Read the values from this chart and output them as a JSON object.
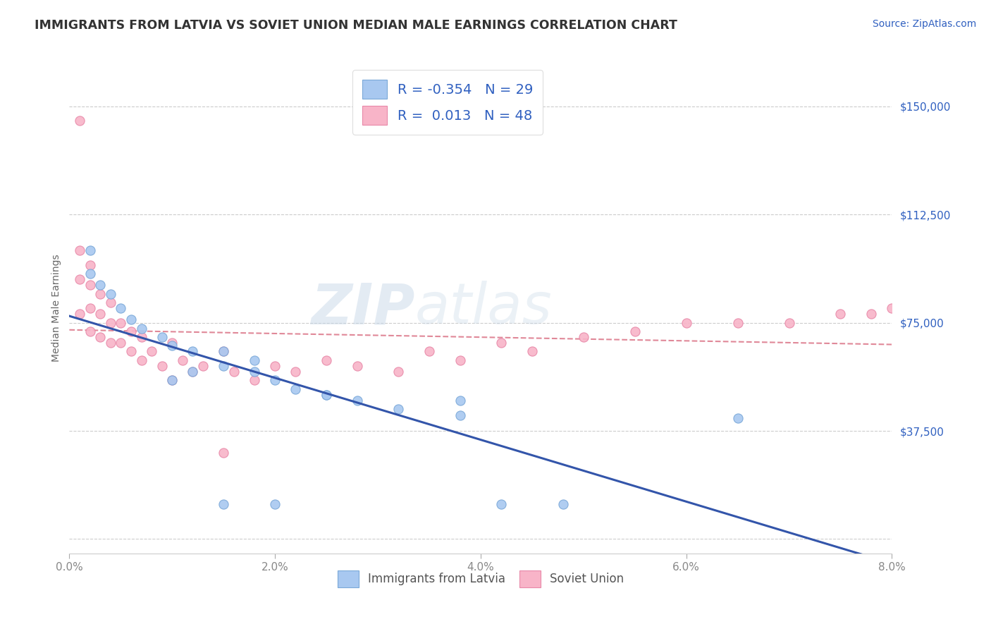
{
  "title": "IMMIGRANTS FROM LATVIA VS SOVIET UNION MEDIAN MALE EARNINGS CORRELATION CHART",
  "source": "Source: ZipAtlas.com",
  "ylabel": "Median Male Earnings",
  "xlim": [
    0.0,
    0.08
  ],
  "ylim": [
    -5000,
    165000
  ],
  "yticks": [
    0,
    37500,
    75000,
    112500,
    150000
  ],
  "ytick_labels": [
    "",
    "$37,500",
    "$75,000",
    "$112,500",
    "$150,000"
  ],
  "xtick_labels": [
    "0.0%",
    "2.0%",
    "4.0%",
    "6.0%",
    "8.0%"
  ],
  "xticks": [
    0.0,
    0.02,
    0.04,
    0.06,
    0.08
  ],
  "watermark_zip": "ZIP",
  "watermark_atlas": "atlas",
  "color_latvia": "#a8c8f0",
  "color_soviet": "#f8b4c8",
  "color_latvia_edge": "#7aa8d8",
  "color_soviet_edge": "#e888a8",
  "trendline_latvia_color": "#3355aa",
  "trendline_soviet_color": "#e08898",
  "axis_color": "#cccccc",
  "tick_color": "#3060c0",
  "background_color": "#ffffff",
  "title_color": "#333333",
  "title_fontsize": 12.5,
  "label_fontsize": 10,
  "tick_fontsize": 11,
  "source_fontsize": 10,
  "latvia_x": [
    0.002,
    0.002,
    0.003,
    0.004,
    0.005,
    0.006,
    0.007,
    0.009,
    0.01,
    0.012,
    0.015,
    0.018,
    0.02,
    0.022,
    0.025,
    0.028,
    0.032,
    0.038,
    0.01,
    0.012,
    0.015,
    0.018,
    0.025,
    0.038,
    0.042,
    0.048,
    0.065,
    0.015,
    0.02
  ],
  "latvia_y": [
    100000,
    92000,
    88000,
    85000,
    80000,
    76000,
    73000,
    70000,
    67000,
    65000,
    60000,
    58000,
    55000,
    52000,
    50000,
    48000,
    45000,
    43000,
    55000,
    58000,
    65000,
    62000,
    50000,
    48000,
    12000,
    12000,
    42000,
    12000,
    12000
  ],
  "soviet_x": [
    0.001,
    0.001,
    0.001,
    0.001,
    0.002,
    0.002,
    0.002,
    0.002,
    0.003,
    0.003,
    0.003,
    0.004,
    0.004,
    0.004,
    0.005,
    0.005,
    0.006,
    0.006,
    0.007,
    0.007,
    0.008,
    0.009,
    0.01,
    0.011,
    0.012,
    0.013,
    0.015,
    0.016,
    0.018,
    0.02,
    0.022,
    0.025,
    0.028,
    0.032,
    0.035,
    0.038,
    0.042,
    0.045,
    0.05,
    0.055,
    0.06,
    0.065,
    0.07,
    0.075,
    0.078,
    0.08,
    0.01,
    0.015
  ],
  "soviet_y": [
    145000,
    100000,
    90000,
    78000,
    95000,
    88000,
    80000,
    72000,
    85000,
    78000,
    70000,
    82000,
    75000,
    68000,
    75000,
    68000,
    72000,
    65000,
    70000,
    62000,
    65000,
    60000,
    68000,
    62000,
    58000,
    60000,
    65000,
    58000,
    55000,
    60000,
    58000,
    62000,
    60000,
    58000,
    65000,
    62000,
    68000,
    65000,
    70000,
    72000,
    75000,
    75000,
    75000,
    78000,
    78000,
    80000,
    55000,
    30000
  ]
}
